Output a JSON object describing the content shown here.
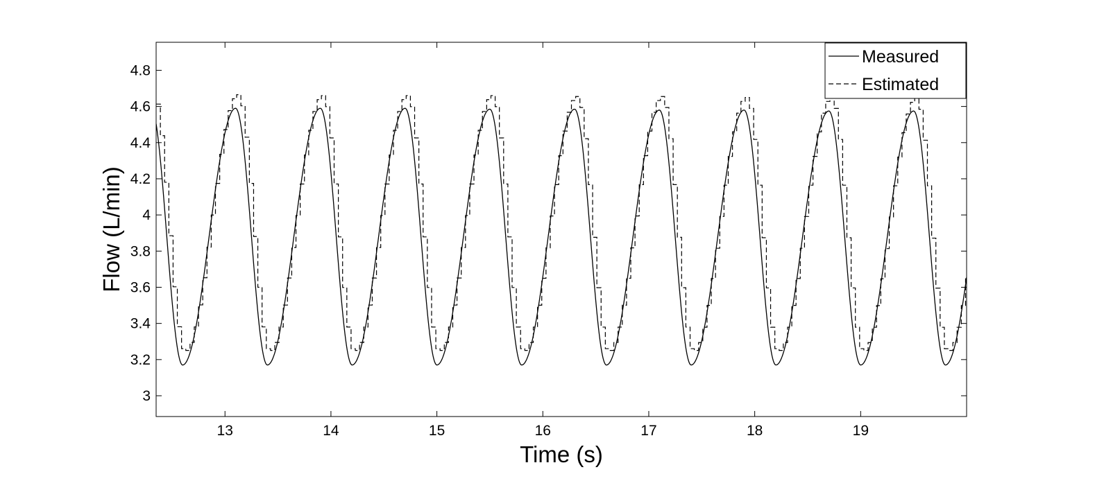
{
  "chart_data": {
    "type": "line",
    "title": "",
    "xlabel": "Time (s)",
    "ylabel": "Flow (L/min)",
    "xlim": [
      12.35,
      20.0
    ],
    "ylim": [
      2.885,
      4.955
    ],
    "xticks": [
      13,
      14,
      15,
      16,
      17,
      18,
      19
    ],
    "xtick_labels": [
      "13",
      "14",
      "15",
      "16",
      "17",
      "18",
      "19"
    ],
    "yticks": [
      3.0,
      3.2,
      3.4,
      3.6,
      3.8,
      4.0,
      4.2,
      4.4,
      4.6,
      4.8
    ],
    "ytick_labels": [
      "3",
      "3.2",
      "3.4",
      "3.6",
      "3.8",
      "4",
      "4.2",
      "4.4",
      "4.6",
      "4.8"
    ],
    "grid": false,
    "legend_position": "top-right",
    "series": [
      {
        "name": "Measured",
        "style": "solid",
        "color": "#000000",
        "period": 0.8,
        "first_peak_time": 13.1,
        "first_trough_time": 12.6,
        "peak_values": [
          4.59,
          4.59,
          4.59,
          4.585,
          4.585,
          4.58,
          4.58,
          4.575,
          4.575
        ],
        "trough_value": 3.17,
        "start_value": 4.6
      },
      {
        "name": "Estimated",
        "style": "dashed",
        "color": "#000000",
        "step_interval": 0.04,
        "peak_values": [
          4.665,
          4.66,
          4.66,
          4.66,
          4.655,
          4.655,
          4.65,
          4.65,
          4.645
        ],
        "trough_value": 3.245,
        "lag": 0.03
      }
    ]
  }
}
